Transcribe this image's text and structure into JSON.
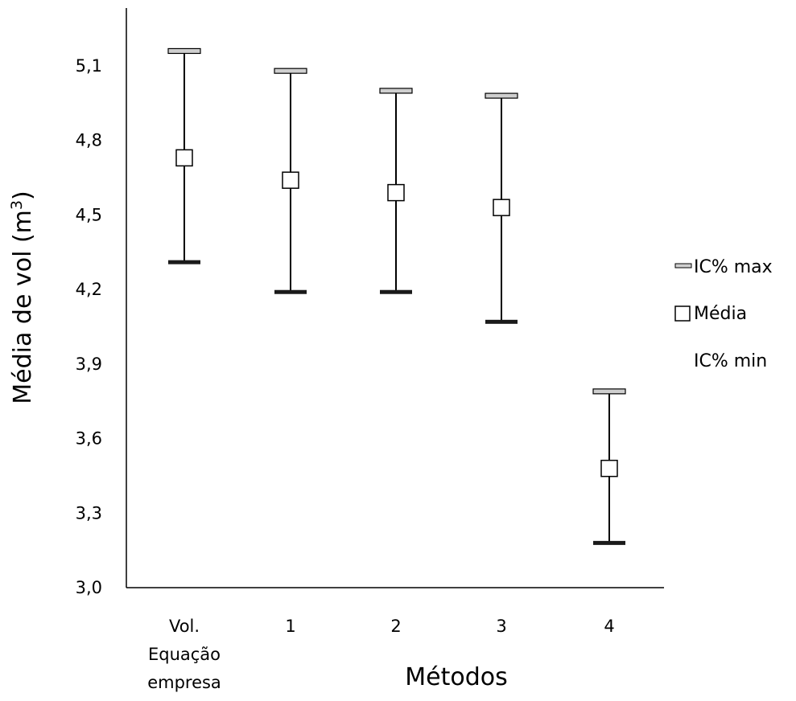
{
  "chart_data": {
    "type": "scatter",
    "categories": [
      "Vol. Equação empresa",
      "1",
      "2",
      "3",
      "4"
    ],
    "category_lines": [
      [
        "Vol.",
        "Equação",
        "empresa"
      ],
      [
        "1"
      ],
      [
        "2"
      ],
      [
        "3"
      ],
      [
        "4"
      ]
    ],
    "series": [
      {
        "name": "IC% max",
        "values": [
          5.16,
          5.08,
          5.0,
          4.98,
          3.79
        ]
      },
      {
        "name": "Média",
        "values": [
          4.73,
          4.64,
          4.59,
          4.53,
          3.48
        ]
      },
      {
        "name": "IC% min",
        "values": [
          4.31,
          4.19,
          4.19,
          4.07,
          3.18
        ]
      }
    ],
    "xlabel": "Métodos",
    "ylabel": "Média de vol (m³)",
    "ylabel_main": "Média de vol (m",
    "ylabel_sup": "3",
    "ylabel_close": ")",
    "ylim": [
      3.0,
      5.1
    ],
    "yticks": [
      "3,0",
      "3,3",
      "3,6",
      "3,9",
      "4,2",
      "4,5",
      "4,8",
      "5,1"
    ],
    "ytick_values": [
      3.0,
      3.3,
      3.6,
      3.9,
      4.2,
      4.5,
      4.8,
      5.1
    ],
    "legend": [
      "IC% max",
      "Média",
      "IC% min"
    ],
    "legend_position": "right",
    "grid": false
  }
}
